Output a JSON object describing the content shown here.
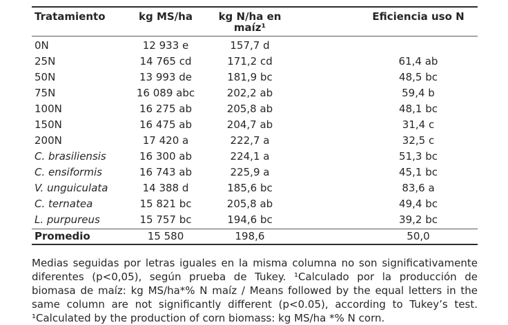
{
  "table": {
    "columns": [
      "Tratamiento",
      "kg MS/ha",
      "kg N/ha en maíz¹",
      "Eficiencia uso N"
    ],
    "rows": [
      [
        "0N",
        "12 933 e",
        "157,7 d",
        ""
      ],
      [
        "25N",
        "14 765 cd",
        "171,2 cd",
        "61,4 ab"
      ],
      [
        "50N",
        "13 993 de",
        "181,9 bc",
        "48,5 bc"
      ],
      [
        "75N",
        "16 089 abc",
        "202,2 ab",
        "59,4 b"
      ],
      [
        "100N",
        "16 275 ab",
        "205,8 ab",
        "48,1 bc"
      ],
      [
        "150N",
        "16 475 ab",
        "204,7 ab",
        "31,4 c"
      ],
      [
        "200N",
        "17 420 a",
        "222,7 a",
        "32,5 c"
      ],
      [
        "C. brasiliensis",
        "16 300 ab",
        "224,1 a",
        "51,3 bc"
      ],
      [
        "C. ensiformis",
        "16 743 ab",
        "225,9 a",
        "45,1 bc"
      ],
      [
        "V. unguiculata",
        "14 388 d",
        "185,6 bc",
        "83,6 a"
      ],
      [
        "C. ternatea",
        "15 821 bc",
        "205,8 ab",
        "49,4 bc"
      ],
      [
        "L. purpureus",
        "15 757 bc",
        "194,6 bc",
        "39,2 bc"
      ]
    ],
    "summary": [
      "Promedio",
      "15 580",
      "198,6",
      "50,0"
    ]
  },
  "footnote": {
    "lines": [
      "Medias seguidas por letras iguales en la misma columna no son significativamente",
      "diferentes (p<0,05), según prueba de Tukey. ¹Calculado por la producción de",
      "biomasa de maíz: kg MS/ha*% N maíz / Means followed by the equal letters in the",
      "same column are not significantly different (p<0.05), according to Tukey’s test.",
      "¹Calculated by the production of corn biomass: kg MS/ha *% N corn."
    ]
  }
}
